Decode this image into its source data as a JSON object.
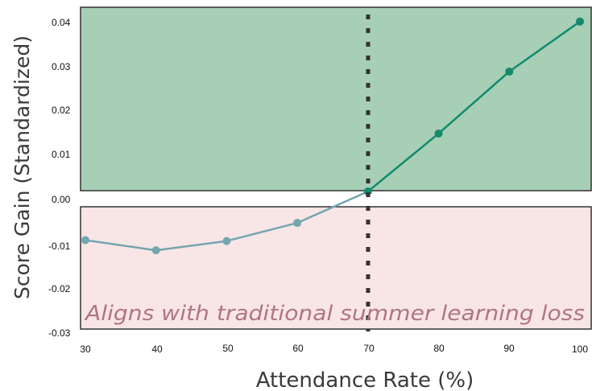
{
  "chart_data": {
    "type": "line",
    "title": "",
    "xlabel": "Attendance Rate (%)",
    "ylabel": "Score Gain (Standardized)",
    "x": [
      30,
      40,
      50,
      60,
      70,
      80,
      90,
      100
    ],
    "y": [
      -0.011,
      -0.0133,
      -0.0112,
      -0.0071,
      0.0,
      0.0131,
      0.0271,
      0.0384
    ],
    "xticks": [
      "30",
      "40",
      "50",
      "60",
      "70",
      "80",
      "90",
      "100"
    ],
    "yticks": [
      "0.04",
      "0.03",
      "0.02",
      "0.01",
      "0.00",
      "-0.01",
      "-0.02",
      "-0.03"
    ],
    "xlim": [
      30,
      100
    ],
    "ylim": [
      -0.03,
      0.04
    ],
    "reference_line_x": 70,
    "annotation": "Aligns with traditional summer learning loss",
    "colors": {
      "positive_region": "#a6cfb6",
      "negative_region": "#f8e5e6",
      "line_positive": "#148a6c",
      "line_negative": "#74a6ad",
      "reference_line": "#333333",
      "annotation": "#b07580"
    }
  }
}
